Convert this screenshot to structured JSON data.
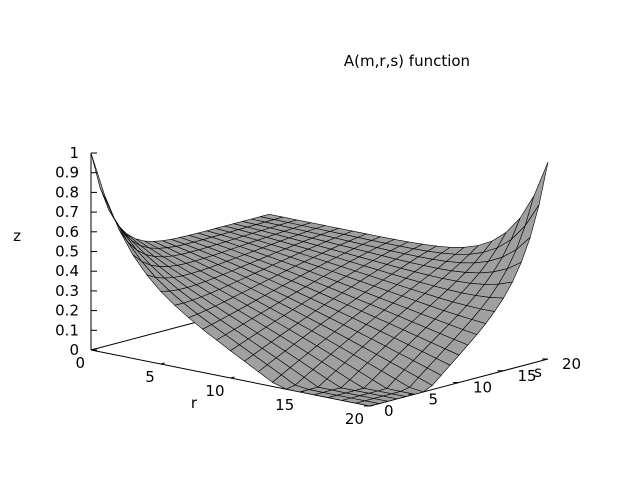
{
  "chart_data": {
    "type": "surface3d",
    "title": "A(m,r,s) function",
    "xlabel": "r",
    "ylabel": "s",
    "zlabel": "z",
    "xlim": [
      0,
      20
    ],
    "ylim": [
      0,
      20
    ],
    "zlim": [
      0,
      1
    ],
    "x_ticks": [
      "0",
      "5",
      "10",
      "15",
      "20"
    ],
    "y_ticks": [
      "0",
      "5",
      "10",
      "15",
      "20"
    ],
    "z_ticks": [
      "0",
      "0.1",
      "0.2",
      "0.3",
      "0.4",
      "0.5",
      "0.6",
      "0.7",
      "0.8",
      "0.9",
      "1"
    ],
    "grid_size": 20,
    "surface": "binomial overlap with peak 1 at corners (r=0,s=0) and (r=20,s=20), about 0.5 elsewhere, near 0 at the (r=20,s=0) corner",
    "surface_color": "#a0a0a0",
    "mesh_color": "#000000",
    "legend": "none"
  }
}
